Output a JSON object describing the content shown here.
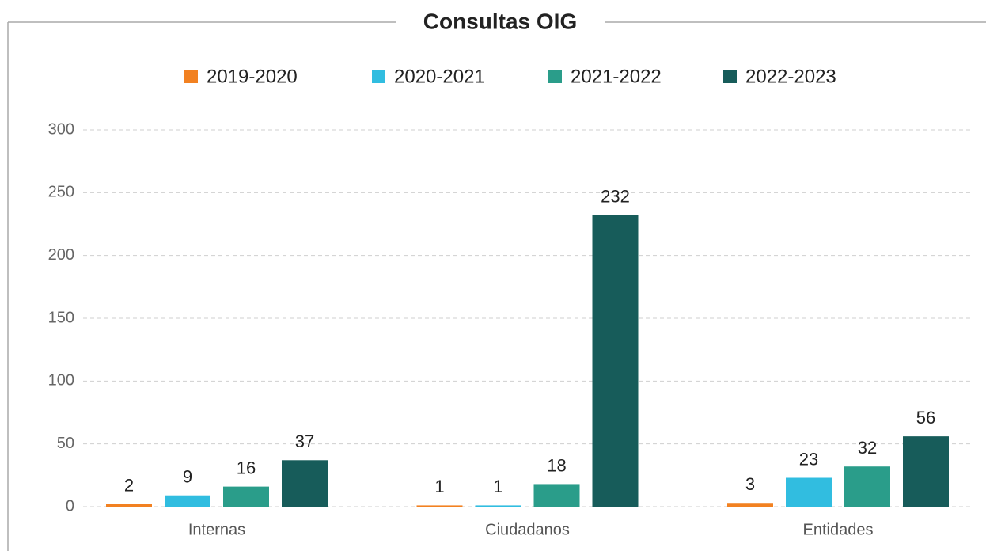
{
  "chart_data": {
    "type": "bar",
    "title": "Consultas OIG",
    "categories": [
      "Internas",
      "Ciudadanos",
      "Entidades"
    ],
    "series": [
      {
        "name": "2019-2020",
        "color": "#f28121",
        "values": [
          2,
          1,
          3
        ]
      },
      {
        "name": "2020-2021",
        "color": "#31bde0",
        "values": [
          9,
          1,
          23
        ]
      },
      {
        "name": "2021-2022",
        "color": "#2a9d8a",
        "values": [
          16,
          18,
          32
        ]
      },
      {
        "name": "2022-2023",
        "color": "#175c5a",
        "values": [
          37,
          232,
          56
        ]
      }
    ],
    "ylim": [
      0,
      300
    ],
    "yticks": [
      0,
      50,
      100,
      150,
      200,
      250,
      300
    ],
    "grid": true,
    "legend": "top"
  }
}
